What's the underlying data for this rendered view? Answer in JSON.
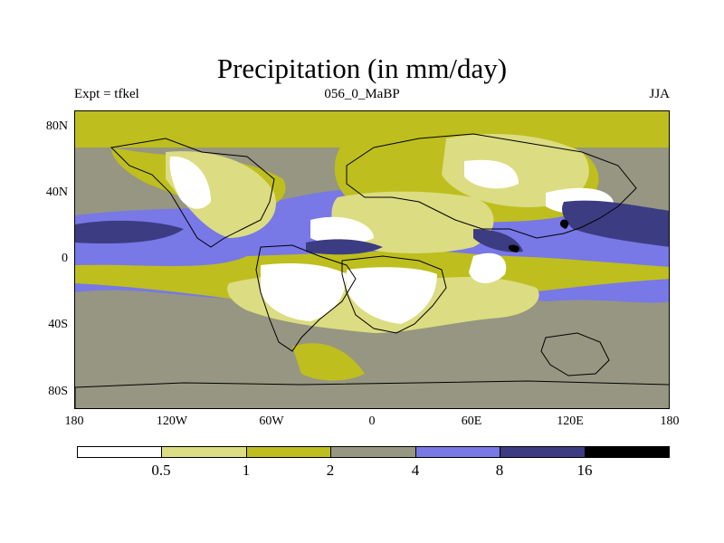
{
  "title": "Precipitation (in mm/day)",
  "subtitle_left": "Expt = tfkel",
  "subtitle_center": "056_0_MaBP",
  "subtitle_right": "JJA",
  "map": {
    "y_ticks": [
      "80N",
      "40N",
      "0",
      "40S",
      "80S"
    ],
    "x_ticks": [
      "180",
      "120W",
      "60W",
      "0",
      "60E",
      "120E",
      "180"
    ]
  },
  "colorbar": {
    "labels": [
      "0.5",
      "1",
      "2",
      "4",
      "8",
      "16"
    ],
    "colors": [
      "#ffffff",
      "#dcdc82",
      "#bebe1e",
      "#969682",
      "#7878e6",
      "#3c3c82",
      "#000000"
    ]
  }
}
